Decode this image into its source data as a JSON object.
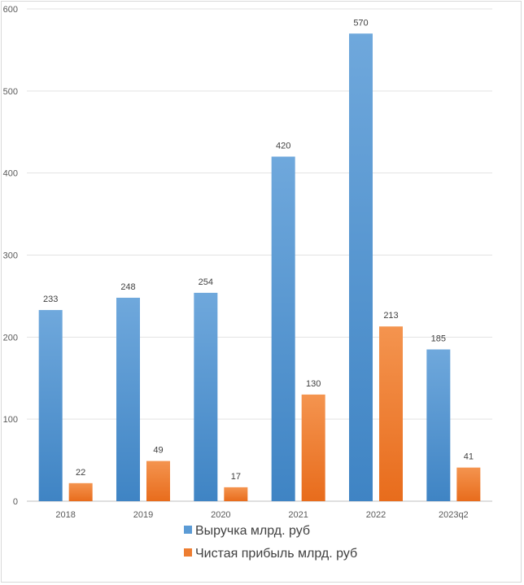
{
  "chart_data": {
    "type": "bar",
    "categories": [
      "2018",
      "2019",
      "2020",
      "2021",
      "2022",
      "2023q2"
    ],
    "series": [
      {
        "name": "Выручка млрд. руб",
        "values": [
          233,
          248,
          254,
          420,
          570,
          185
        ],
        "color": "#5b9bd5"
      },
      {
        "name": "Чистая прибыль млрд. руб",
        "values": [
          22,
          49,
          17,
          130,
          213,
          41
        ],
        "color": "#ed7d31"
      }
    ],
    "ylim": [
      0,
      600
    ],
    "yticks": [
      0,
      100,
      200,
      300,
      400,
      500,
      600
    ],
    "grid": true,
    "legend": "bottom",
    "data_labels": true
  }
}
